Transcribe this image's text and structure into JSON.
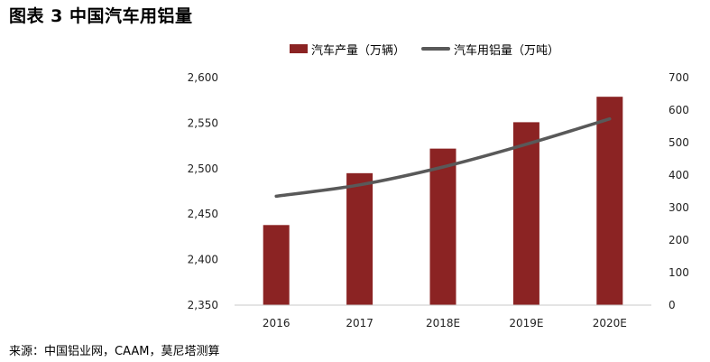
{
  "figure": {
    "title": "图表 3 中国汽车用铝量",
    "source": "来源：中国铝业网，CAAM，莫尼塔测算"
  },
  "chart_data": {
    "type": "bar",
    "categories": [
      "2016",
      "2017",
      "2018E",
      "2019E",
      "2020E"
    ],
    "series": [
      {
        "name": "汽车产量（万辆）",
        "kind": "bar",
        "axis": "left",
        "color": "#8b2323",
        "values": [
          2438,
          2495,
          2522,
          2551,
          2579
        ]
      },
      {
        "name": "汽车用铝量（万吨）",
        "kind": "line",
        "axis": "right",
        "color": "#595959",
        "values": [
          335,
          370,
          425,
          495,
          573
        ]
      }
    ],
    "y_left": {
      "ylim": [
        2350,
        2600
      ],
      "ticks": [
        "2,350",
        "2,400",
        "2,450",
        "2,500",
        "2,550",
        "2,600"
      ],
      "tick_values": [
        2350,
        2400,
        2450,
        2500,
        2550,
        2600
      ]
    },
    "y_right": {
      "ylim": [
        0,
        700
      ],
      "ticks": [
        "0",
        "100",
        "200",
        "300",
        "400",
        "500",
        "600",
        "700"
      ],
      "tick_values": [
        0,
        100,
        200,
        300,
        400,
        500,
        600,
        700
      ]
    },
    "grid": false,
    "legend_position": "top"
  }
}
